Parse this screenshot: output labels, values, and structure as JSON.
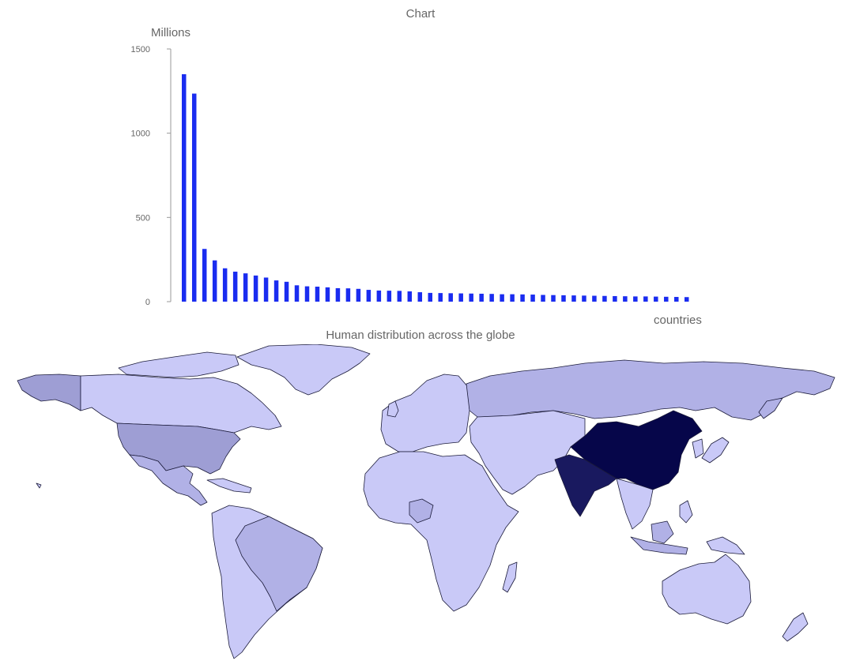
{
  "chart_data": {
    "type": "bar",
    "title": "Chart",
    "ylabel": "Millions",
    "xlabel": "countries",
    "ylim": [
      0,
      1500
    ],
    "yticks": [
      0,
      500,
      1000,
      1500
    ],
    "grid": false,
    "legend": false,
    "bar_color": "#1a2cf0",
    "values": [
      1350,
      1235,
      313,
      245,
      198,
      178,
      168,
      155,
      143,
      126,
      118,
      97,
      91,
      89,
      85,
      80,
      79,
      76,
      70,
      66,
      65,
      64,
      61,
      56,
      52,
      51,
      50,
      49,
      48,
      47,
      46,
      44,
      44,
      43,
      42,
      40,
      39,
      38,
      37,
      36,
      35,
      34,
      33,
      32,
      31,
      31,
      30,
      29,
      28,
      27
    ]
  },
  "map": {
    "title": "Human distribution across the globe",
    "colors": {
      "very_high": "#06064a",
      "high": "#19195f",
      "mid_high": "#9e9ed4",
      "mid": "#b1b1e6",
      "low": "#c9c9f7"
    }
  }
}
